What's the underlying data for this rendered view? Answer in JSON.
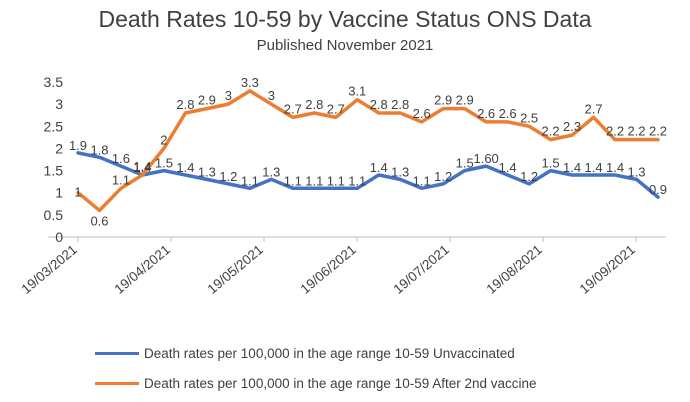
{
  "chart_data": {
    "type": "line",
    "title": "Death Rates 10-59  by Vaccine Status ONS Data",
    "subtitle": "Published November 2021",
    "xlabel": "",
    "ylabel": "",
    "ylim": [
      0,
      3.5
    ],
    "yticks": [
      "0",
      "0.5",
      "1",
      "1.5",
      "2",
      "2.5",
      "3",
      "3.5"
    ],
    "x_tick_labels": [
      "19/03/2021",
      "19/04/2021",
      "19/05/2021",
      "19/06/2021",
      "19/07/2021",
      "19/08/2021",
      "19/09/2021"
    ],
    "x": [
      "19/03/2021",
      "26/03/2021",
      "02/04/2021",
      "09/04/2021",
      "16/04/2021",
      "23/04/2021",
      "30/04/2021",
      "07/05/2021",
      "14/05/2021",
      "21/05/2021",
      "28/05/2021",
      "04/06/2021",
      "11/06/2021",
      "18/06/2021",
      "25/06/2021",
      "02/07/2021",
      "09/07/2021",
      "16/07/2021",
      "23/07/2021",
      "30/07/2021",
      "06/08/2021",
      "13/08/2021",
      "20/08/2021",
      "27/08/2021",
      "03/09/2021",
      "10/09/2021",
      "17/09/2021",
      "24/09/2021"
    ],
    "series": [
      {
        "name": "Death rates per 100,000 in the age range 10-59 Unvaccinated",
        "color": "#4472c4",
        "values": [
          1.9,
          1.8,
          1.6,
          1.4,
          1.5,
          1.4,
          1.3,
          1.2,
          1.1,
          1.3,
          1.1,
          1.1,
          1.1,
          1.1,
          1.4,
          1.3,
          1.1,
          1.2,
          1.5,
          1.6,
          1.4,
          1.2,
          1.5,
          1.4,
          1.4,
          1.4,
          1.3,
          0.9
        ],
        "labels": [
          "1.9",
          "1.8",
          "1.6",
          "1.4",
          "1.5",
          "1.4",
          "1.3",
          "1.2",
          "1.1",
          "1.3",
          "1.1",
          "1.1",
          "1.1",
          "1.1",
          "1.4",
          "1.3",
          "1.1",
          "1.2",
          "1.5",
          "1.60",
          "1.4",
          "1.2",
          "1.5",
          "1.4",
          "1.4",
          "1.4",
          "1.3",
          "0.9"
        ]
      },
      {
        "name": "Death rates per 100,000 in the age range 10-59 After 2nd  vaccine",
        "color": "#ed7d31",
        "values": [
          1.0,
          0.6,
          1.1,
          1.4,
          2.0,
          2.8,
          2.9,
          3.0,
          3.3,
          3.0,
          2.7,
          2.8,
          2.7,
          3.1,
          2.8,
          2.8,
          2.6,
          2.9,
          2.9,
          2.6,
          2.6,
          2.5,
          2.2,
          2.3,
          2.7,
          2.2,
          2.2,
          2.2
        ],
        "labels": [
          "1",
          "0.6",
          "1.1",
          "1.4",
          "2",
          "2.8",
          "2.9",
          "3",
          "3.3",
          "3",
          "2.7",
          "2.8",
          "2.7",
          "3.1",
          "2.8",
          "2.8",
          "2.6",
          "2.9",
          "2.9",
          "2.6",
          "2.6",
          "2.5",
          "2.2",
          "2.3",
          "2.7",
          "2.2",
          "2.2",
          "2.2"
        ]
      }
    ],
    "grid": false,
    "legend_position": "bottom"
  }
}
